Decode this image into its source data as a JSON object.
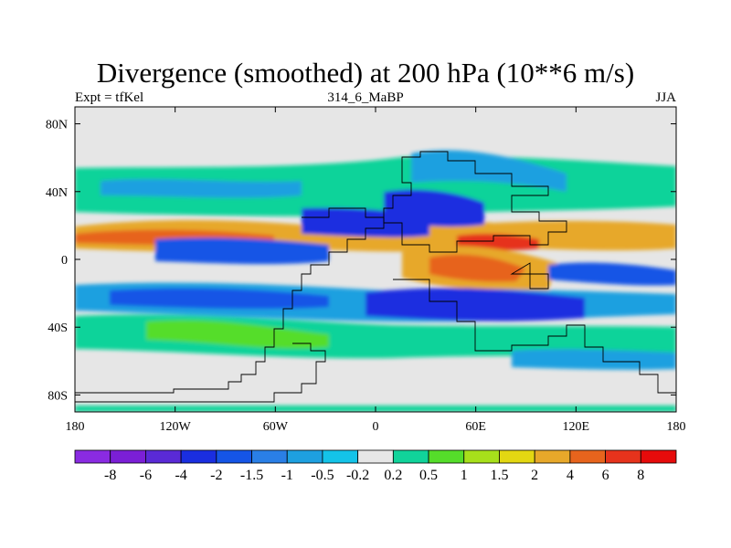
{
  "figure": {
    "title": "Divergence (smoothed) at 200 hPa (10**6 m/s)",
    "left_label": "Expt = tfKel",
    "center_label": "314_6_MaBP",
    "right_label": "JJA"
  },
  "chart_data": {
    "type": "heatmap",
    "title": "Divergence (smoothed) at 200 hPa (10**6 m/s)",
    "x_ticks": [
      "180",
      "120W",
      "60W",
      "0",
      "60E",
      "120E",
      "180"
    ],
    "x_tick_values": [
      -180,
      -120,
      -60,
      0,
      60,
      120,
      180
    ],
    "y_ticks": [
      "80N",
      "40N",
      "0",
      "40S",
      "80S"
    ],
    "y_tick_values": [
      80,
      40,
      0,
      -40,
      -80
    ],
    "xlim": [
      -180,
      180
    ],
    "ylim": [
      -90,
      90
    ],
    "colorbar": {
      "labels": [
        "-8",
        "-6",
        "-4",
        "-2",
        "-1.5",
        "-1",
        "-0.5",
        "-0.2",
        "0.2",
        "0.5",
        "1",
        "1.5",
        "2",
        "4",
        "6",
        "8"
      ],
      "levels": [
        -8,
        -6,
        -4,
        -2,
        -1.5,
        -1,
        -0.5,
        -0.2,
        0.2,
        0.5,
        1,
        1.5,
        2,
        4,
        6,
        8
      ],
      "colors": [
        "#8a2be2",
        "#7b1fd6",
        "#5a2ad6",
        "#1a2ee0",
        "#1555e6",
        "#2a7fe6",
        "#1ea0e0",
        "#14c3e8",
        "#e6e6e6",
        "#11d39a",
        "#55dd2a",
        "#a7e01b",
        "#e3d712",
        "#e7a82a",
        "#e7641d",
        "#e6331c",
        "#e60b0b"
      ]
    }
  }
}
